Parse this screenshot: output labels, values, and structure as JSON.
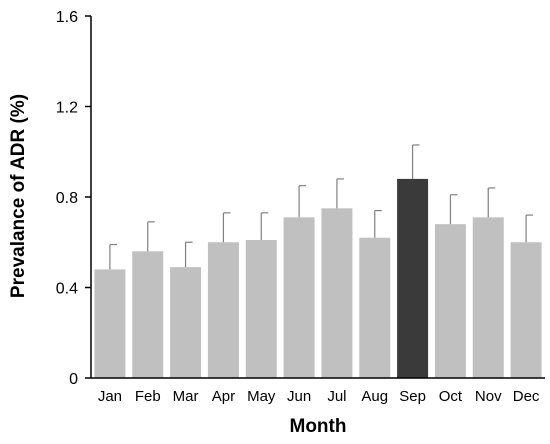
{
  "chart_data": {
    "type": "bar",
    "title": "",
    "xlabel": "Month",
    "ylabel": "Prevalance of ADR (%)",
    "categories": [
      "Jan",
      "Feb",
      "Mar",
      "Apr",
      "May",
      "Jun",
      "Jul",
      "Aug",
      "Sep",
      "Oct",
      "Nov",
      "Dec"
    ],
    "values": [
      0.48,
      0.56,
      0.49,
      0.6,
      0.61,
      0.71,
      0.75,
      0.62,
      0.88,
      0.68,
      0.71,
      0.6
    ],
    "error_upper": [
      0.59,
      0.69,
      0.6,
      0.73,
      0.73,
      0.85,
      0.88,
      0.74,
      1.03,
      0.81,
      0.84,
      0.72
    ],
    "ylim": [
      0,
      1.6
    ],
    "yticks": [
      0,
      0.4,
      0.8,
      1.2,
      1.6
    ],
    "ytick_labels": [
      "0",
      "0.4",
      "0.8",
      "1.2",
      "1.6"
    ],
    "grid": false,
    "bar_color": "#c0c0c0",
    "highlight_category": "Sep",
    "highlight_color": "#3a3a3a",
    "error_bar_color": "#808080",
    "axis_color": "#000000"
  }
}
